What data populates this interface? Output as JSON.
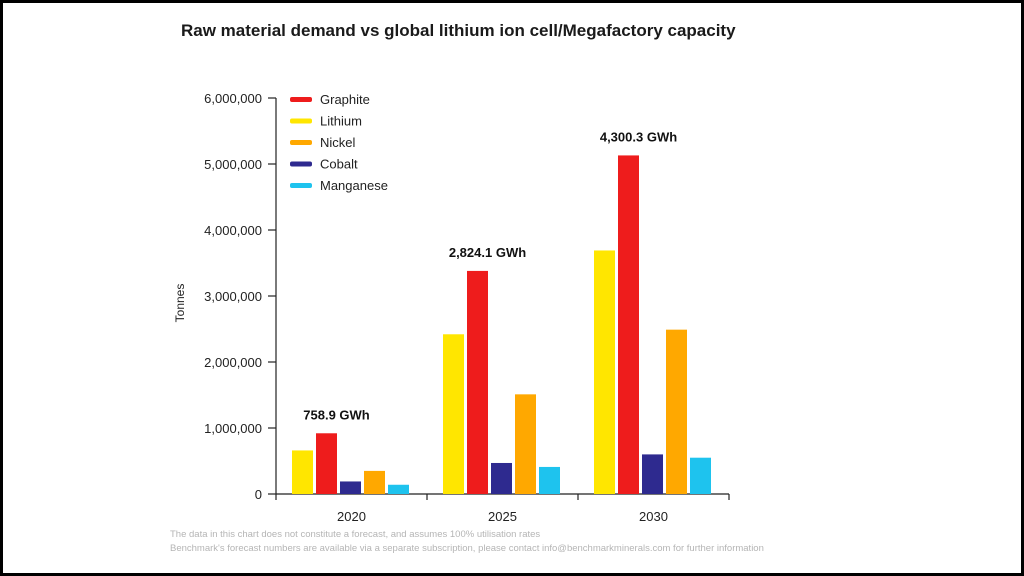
{
  "chart_data": {
    "type": "bar",
    "title": "Raw material demand vs global lithium ion cell/Megafactory capacity",
    "ylabel": "Tonnes",
    "xlabel": "",
    "ylim": [
      0,
      6000000
    ],
    "yticks": [
      0,
      1000000,
      2000000,
      3000000,
      4000000,
      5000000,
      6000000
    ],
    "ytick_labels": [
      "0",
      "1,000,000",
      "2,000,000",
      "3,000,000",
      "4,000,000",
      "5,000,000",
      "6,000,000"
    ],
    "categories": [
      "2020",
      "2025",
      "2030"
    ],
    "series": [
      {
        "name": "Lithium",
        "color": "#FFE600",
        "values": [
          660000,
          2420000,
          3690000
        ]
      },
      {
        "name": "Graphite",
        "color": "#EE1C1C",
        "values": [
          920000,
          3380000,
          5130000
        ]
      },
      {
        "name": "Cobalt",
        "color": "#2E2A8F",
        "values": [
          190000,
          470000,
          600000
        ]
      },
      {
        "name": "Nickel",
        "color": "#FFA800",
        "values": [
          350000,
          1510000,
          2490000
        ]
      },
      {
        "name": "Manganese",
        "color": "#1EC3EE",
        "values": [
          140000,
          410000,
          550000
        ]
      }
    ],
    "legend": {
      "position": "top-left",
      "order": [
        "Graphite",
        "Lithium",
        "Nickel",
        "Cobalt",
        "Manganese"
      ]
    },
    "annotations": [
      "758.9 GWh",
      "2,824.1 GWh",
      "4,300.3 GWh"
    ],
    "grid": false
  },
  "footnotes": [
    "The data in this chart does not constitute a forecast, and assumes 100% utilisation rates",
    "Benchmark's forecast numbers are available via a separate subscription, please contact info@benchmarkminerals.com for further information"
  ]
}
